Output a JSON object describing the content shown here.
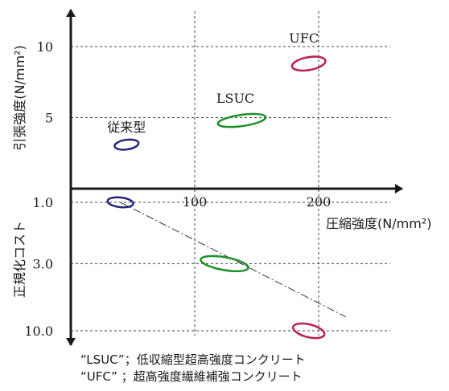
{
  "chart_data": {
    "type": "scatter",
    "x_axis": {
      "label": "圧縮強度(N/mm²)",
      "ticks": [
        {
          "value": 100,
          "label": "100"
        },
        {
          "value": 200,
          "label": "200"
        }
      ]
    },
    "y_axis_upper": {
      "label": "引張強度(N/mm²)",
      "ticks": [
        {
          "value": 5,
          "label": "5"
        },
        {
          "value": 10,
          "label": "10"
        }
      ]
    },
    "y_axis_lower": {
      "label": "正規化コスト",
      "scale": "log",
      "ticks": [
        {
          "value": 1.0,
          "label": "1.0"
        },
        {
          "value": 3.0,
          "label": "3.0"
        },
        {
          "value": 10.0,
          "label": "10.0"
        }
      ]
    },
    "series": [
      {
        "name": "従来型",
        "color": "#23237a",
        "tensile": {
          "x": 45,
          "y": 3.1
        },
        "cost": {
          "x": 40,
          "y": 1.0
        }
      },
      {
        "name": "LSUC",
        "color": "#1f8f2c",
        "tensile": {
          "x": 138,
          "y": 4.8
        },
        "cost": {
          "x": 124,
          "y": 3.0
        }
      },
      {
        "name": "UFC",
        "color": "#b5234d",
        "tensile": {
          "x": 192,
          "y": 8.8
        },
        "cost": {
          "x": 192,
          "y": 10.0
        }
      }
    ],
    "trend_line": {
      "style": "dash-dot",
      "from": {
        "x": 40,
        "y": 1.0
      },
      "to": {
        "x": 222,
        "y": 7.8
      }
    },
    "grid": true
  },
  "notes": [
    "“LSUC”；低収縮型超高強度コンクリート",
    "“UFC”  ；超高強度繊維補強コンクリート"
  ]
}
